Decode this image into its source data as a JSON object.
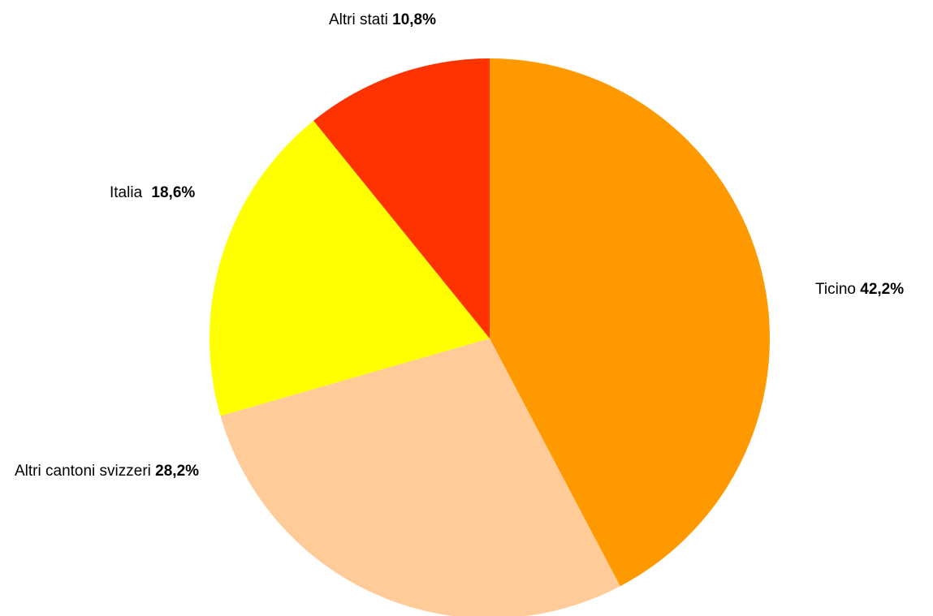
{
  "chart_data": {
    "type": "pie",
    "title": "",
    "legend": "none",
    "slices": [
      {
        "label": "Ticino",
        "value_label": "42,2%",
        "value": 42.2,
        "color": "#FF9900"
      },
      {
        "label": "Altri cantoni svizzeri",
        "value_label": "28,2%",
        "value": 28.2,
        "color": "#FFCC99"
      },
      {
        "label": "Italia",
        "value_label": "18,6%",
        "value": 18.6,
        "color": "#FFFF00"
      },
      {
        "label": "Altri stati",
        "value_label": "10,8%",
        "value": 10.8,
        "color": "#FF3300"
      }
    ]
  }
}
